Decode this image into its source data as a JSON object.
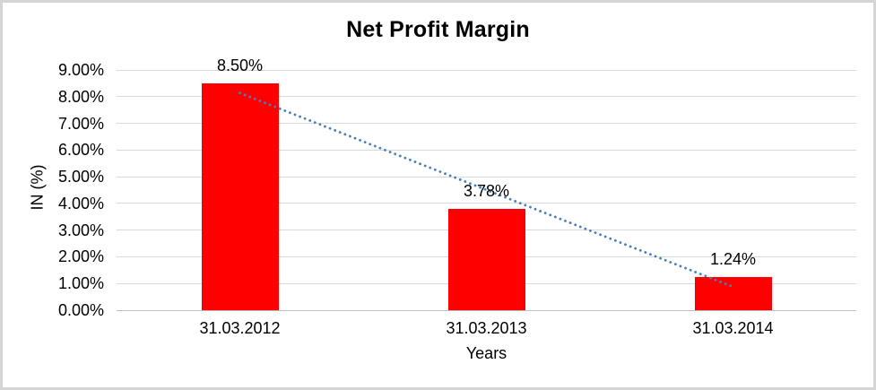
{
  "chart": {
    "title": "Net Profit Margin",
    "y_axis_title": "IN (%)",
    "x_axis_title": "Years"
  },
  "chart_data": {
    "type": "bar",
    "title": "Net Profit Margin",
    "categories": [
      "31.03.2012",
      "31.03.2013",
      "31.03.2014"
    ],
    "values": [
      8.5,
      3.78,
      1.24
    ],
    "value_labels": [
      "8.50%",
      "3.78%",
      "1.24%"
    ],
    "xlabel": "Years",
    "ylabel": "IN (%)",
    "ylim": [
      0,
      9
    ],
    "y_tick_values": [
      0,
      1,
      2,
      3,
      4,
      5,
      6,
      7,
      8,
      9
    ],
    "y_tick_labels": [
      "0.00%",
      "1.00%",
      "2.00%",
      "3.00%",
      "4.00%",
      "5.00%",
      "6.00%",
      "7.00%",
      "8.00%",
      "9.00%"
    ],
    "grid": true,
    "legend": "none",
    "bar_color": "#ff0000",
    "trendline": {
      "type": "linear",
      "style": "dotted",
      "color": "#4a7ebb"
    }
  },
  "colors": {
    "bar": "#ff0000",
    "trendline": "#4a7ebb",
    "gridline": "#d9d9d9",
    "axis_line": "#bfbfbf",
    "frame_border": "#d5d5d5",
    "text": "#000000"
  }
}
